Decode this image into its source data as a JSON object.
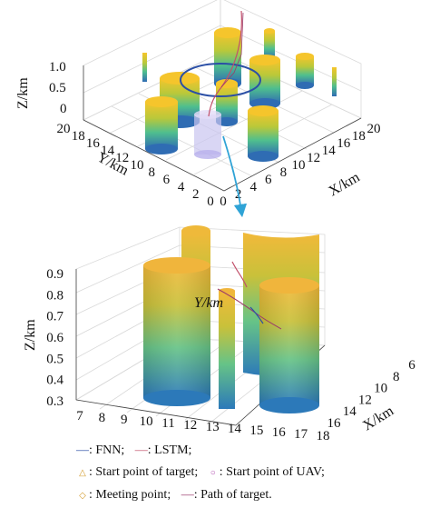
{
  "colors": {
    "fnn": "#2b4fa6",
    "lstm": "#c2506a",
    "start_target": "#d39a2a",
    "start_uav": "#b04cb0",
    "meeting": "#d39a2a",
    "path_target": "#9b3a6a",
    "arrow": "#2fa3d6",
    "cyl_top": "#f2c02e",
    "cyl_mid": "#56c08a",
    "cyl_bot": "#2e6fb3"
  },
  "legend": {
    "fnn_sym": "—",
    "fnn_label": ": FNN;",
    "lstm_sym": "—",
    "lstm_label": ": LSTM;",
    "start_target_sym": "△",
    "start_target_label": ": Start point of target;",
    "start_uav_sym": "○",
    "start_uav_label": ": Start point of UAV;",
    "meeting_sym": "◇",
    "meeting_label": ": Meeting point;",
    "path_sym": "—",
    "path_label": ": Path of target."
  },
  "chart_data": [
    {
      "type": "surface3d",
      "zlabel": "Z/km",
      "ylabel": "Y/km",
      "xlabel": "X/km",
      "z_ticks": [
        "0",
        "0.5",
        "1.0"
      ],
      "y_ticks": [
        "0",
        "2",
        "4",
        "6",
        "8",
        "10",
        "12",
        "14",
        "16",
        "18",
        "20"
      ],
      "x_ticks": [
        "0",
        "2",
        "4",
        "6",
        "8",
        "10",
        "12",
        "14",
        "16",
        "18",
        "20"
      ],
      "xlim": [
        0,
        20
      ],
      "ylim": [
        0,
        20
      ],
      "zlim": [
        0,
        1.0
      ]
    },
    {
      "type": "surface3d",
      "zlabel": "Z/km",
      "ylabel": "Y/km",
      "xlabel": "X/km",
      "z_ticks": [
        "0.3",
        "0.4",
        "0.5",
        "0.6",
        "0.7",
        "0.8",
        "0.9"
      ],
      "y_ticks": [
        "7",
        "8",
        "9",
        "10",
        "11",
        "12",
        "13",
        "14",
        "15",
        "16",
        "17",
        "18"
      ],
      "x_ticks": [
        "6",
        "8",
        "10",
        "12",
        "14",
        "16"
      ],
      "xlim": [
        6,
        16
      ],
      "ylim": [
        7,
        18
      ],
      "zlim": [
        0.3,
        0.9
      ]
    }
  ]
}
